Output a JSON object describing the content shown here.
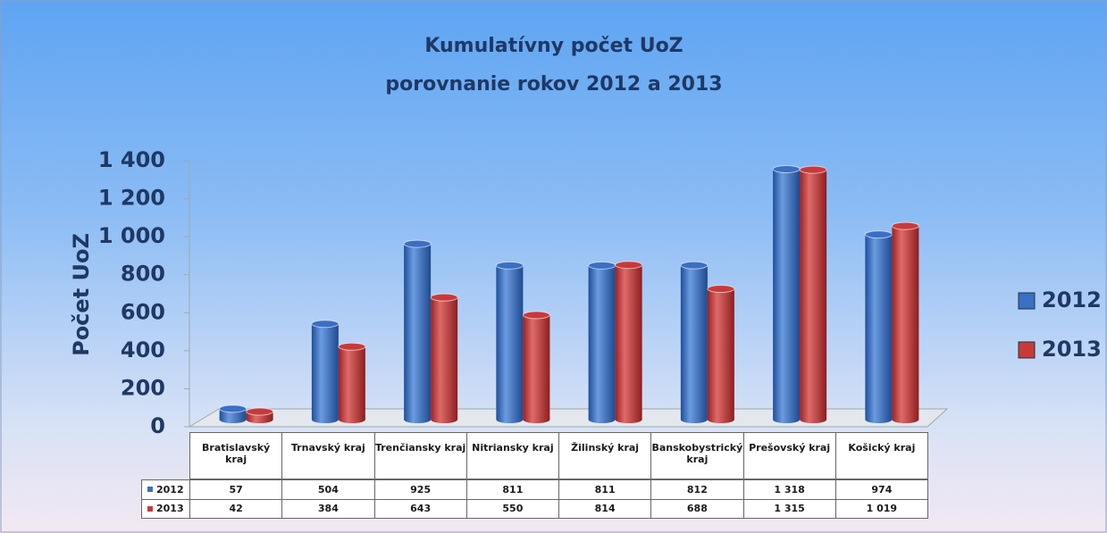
{
  "chart_data": {
    "type": "bar",
    "title": "Kumulatívny počet UoZ",
    "subtitle": "porovnanie rokov 2012 a 2013",
    "y_label": "Počet UoZ",
    "categories": [
      "Bratislavský kraj",
      "Trnavský kraj",
      "Trenčiansky kraj",
      "Nitriansky kraj",
      "Žilinský kraj",
      "Banskobystrický kraj",
      "Prešovský kraj",
      "Košický kraj"
    ],
    "series": [
      {
        "name": "2012",
        "color": "#3a6fc4",
        "values": [
          57,
          504,
          925,
          811,
          811,
          812,
          1318,
          974
        ],
        "value_labels": [
          "57",
          "504",
          "925",
          "811",
          "811",
          "812",
          "1 318",
          "974"
        ]
      },
      {
        "name": "2013",
        "color": "#c83a3a",
        "values": [
          42,
          384,
          643,
          550,
          814,
          688,
          1315,
          1019
        ],
        "value_labels": [
          "42",
          "384",
          "643",
          "550",
          "814",
          "688",
          "1 315",
          "1 019"
        ]
      }
    ],
    "ylim": [
      0,
      1400
    ],
    "yticks": [
      0,
      200,
      400,
      600,
      800,
      {
        "value": 1000,
        "label": "1 000"
      },
      {
        "value": 1200,
        "label": "1 200"
      },
      {
        "value": 1400,
        "label": "1 400"
      }
    ],
    "legend": "right"
  }
}
